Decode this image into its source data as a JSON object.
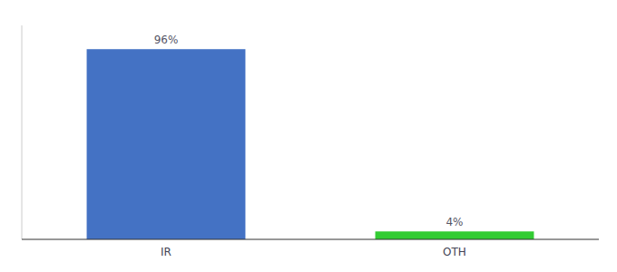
{
  "chart_data": {
    "type": "bar",
    "categories": [
      "IR",
      "OTH"
    ],
    "values": [
      96,
      4
    ],
    "value_labels": [
      "96%",
      "4%"
    ],
    "colors": [
      "#4472c4",
      "#33cc33"
    ],
    "ylim": [
      0,
      108
    ],
    "data_labels": true,
    "tick_labels": "x",
    "grid": false
  }
}
